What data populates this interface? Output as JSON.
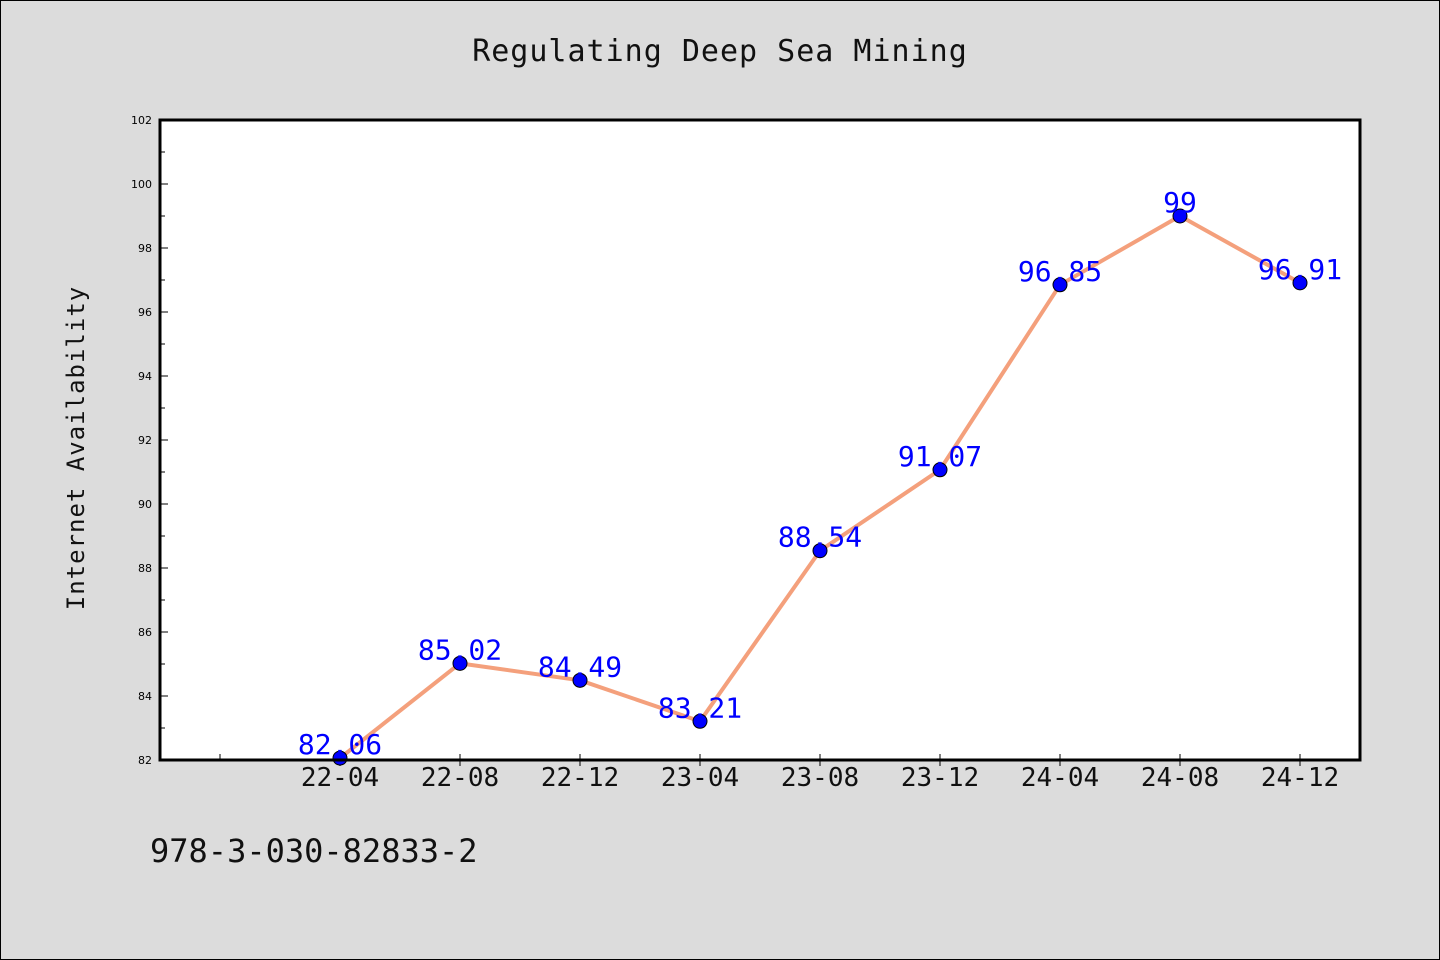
{
  "chart_data": {
    "type": "line",
    "title": "Regulating Deep Sea Mining",
    "xlabel": "",
    "ylabel": "Internet Availability",
    "categories": [
      "22-04",
      "22-08",
      "22-12",
      "23-04",
      "23-08",
      "23-12",
      "24-04",
      "24-08",
      "24-12"
    ],
    "series": [
      {
        "values": [
          82.06,
          85.02,
          84.49,
          83.21,
          88.54,
          91.07,
          96.85,
          99,
          96.91
        ],
        "labels": [
          "82.06",
          "85.02",
          "84.49",
          "83.21",
          "88.54",
          "91.07",
          "96.85",
          "99",
          "96.91"
        ]
      }
    ],
    "ylim": [
      82,
      102
    ],
    "yticks": [
      82,
      84,
      86,
      88,
      90,
      92,
      94,
      96,
      98,
      100,
      102
    ],
    "grid": false,
    "legend": "none",
    "colors": {
      "line": "#f4a07c",
      "marker": "#0000ff",
      "data_label": "#0000ff",
      "plot_bg": "#ffffff",
      "page_bg": "#dcdcdc"
    }
  },
  "footer": {
    "id_text": "978-3-030-82833-2"
  }
}
